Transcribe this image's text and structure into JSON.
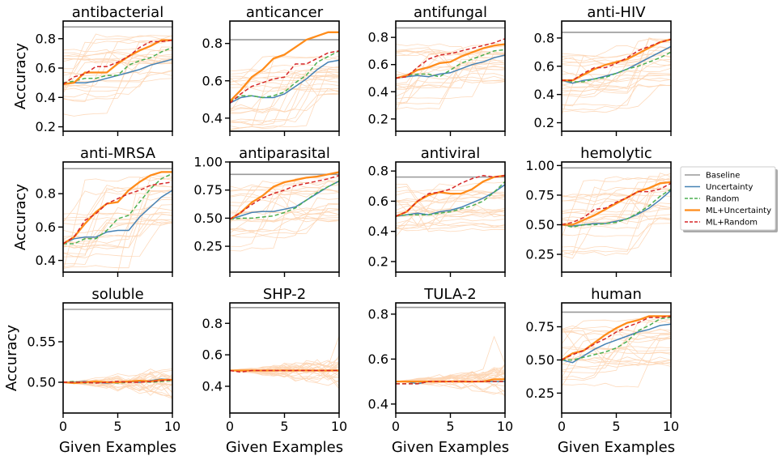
{
  "chart_data": {
    "type": "line",
    "panel_grid": {
      "rows": 3,
      "cols": 4
    },
    "xlabel": "Given Examples",
    "ylabel": "Accuracy",
    "xlim": [
      0,
      10
    ],
    "x": [
      0,
      1,
      2,
      3,
      4,
      5,
      6,
      7,
      8,
      9,
      10
    ],
    "xticks": [
      0,
      5,
      10
    ],
    "legend": {
      "placement": "right",
      "entries": [
        "Baseline",
        "Uncertainty",
        "Random",
        "ML+Uncertainty",
        "ML+Random"
      ]
    },
    "colors": {
      "Baseline": "#999999",
      "Uncertainty": "#4682b4",
      "Random": "#4caf50",
      "ML+Uncertainty": "#ff8c1a",
      "ML+Random": "#d62728",
      "traces": "#fdd5b4"
    },
    "panels": [
      {
        "title": "antibacterial",
        "ylim": [
          0.17,
          0.92
        ],
        "yticks": [
          0.2,
          0.4,
          0.6,
          0.8
        ],
        "ytick_labels": [
          "0.2",
          "0.4",
          "0.6",
          "0.8"
        ],
        "baseline": 0.88,
        "series": [
          {
            "name": "Uncertainty",
            "values": [
              0.49,
              0.5,
              0.5,
              0.51,
              0.53,
              0.55,
              0.57,
              0.59,
              0.62,
              0.64,
              0.66
            ]
          },
          {
            "name": "Random",
            "values": [
              0.5,
              0.51,
              0.53,
              0.53,
              0.55,
              0.55,
              0.62,
              0.65,
              0.67,
              0.71,
              0.74
            ]
          },
          {
            "name": "ML+Uncertainty",
            "values": [
              0.49,
              0.5,
              0.57,
              0.57,
              0.57,
              0.63,
              0.68,
              0.72,
              0.75,
              0.79,
              0.79
            ]
          },
          {
            "name": "ML+Random",
            "values": [
              0.49,
              0.54,
              0.56,
              0.61,
              0.61,
              0.64,
              0.68,
              0.74,
              0.78,
              0.78,
              0.79
            ]
          }
        ]
      },
      {
        "title": "anticancer",
        "ylim": [
          0.33,
          0.92
        ],
        "yticks": [
          0.4,
          0.6,
          0.8
        ],
        "ytick_labels": [
          "0.4",
          "0.6",
          "0.8"
        ],
        "baseline": 0.82,
        "series": [
          {
            "name": "Uncertainty",
            "values": [
              0.48,
              0.51,
              0.52,
              0.51,
              0.51,
              0.53,
              0.57,
              0.61,
              0.66,
              0.7,
              0.71
            ]
          },
          {
            "name": "Random",
            "values": [
              0.49,
              0.52,
              0.52,
              0.51,
              0.52,
              0.54,
              0.59,
              0.63,
              0.7,
              0.73,
              0.76
            ]
          },
          {
            "name": "ML+Uncertainty",
            "values": [
              0.49,
              0.55,
              0.62,
              0.66,
              0.72,
              0.74,
              0.78,
              0.82,
              0.84,
              0.86,
              0.86
            ]
          },
          {
            "name": "ML+Random",
            "values": [
              0.48,
              0.53,
              0.57,
              0.59,
              0.61,
              0.62,
              0.69,
              0.69,
              0.72,
              0.75,
              0.76
            ]
          }
        ]
      },
      {
        "title": "antifungal",
        "ylim": [
          0.11,
          0.92
        ],
        "yticks": [
          0.2,
          0.4,
          0.6,
          0.8
        ],
        "ytick_labels": [
          "0.2",
          "0.4",
          "0.6",
          "0.8"
        ],
        "baseline": 0.87,
        "series": [
          {
            "name": "Uncertainty",
            "values": [
              0.5,
              0.51,
              0.52,
              0.51,
              0.53,
              0.54,
              0.57,
              0.6,
              0.62,
              0.65,
              0.67
            ]
          },
          {
            "name": "Random",
            "values": [
              0.5,
              0.52,
              0.53,
              0.53,
              0.51,
              0.56,
              0.61,
              0.64,
              0.67,
              0.7,
              0.71
            ]
          },
          {
            "name": "ML+Uncertainty",
            "values": [
              0.5,
              0.52,
              0.56,
              0.58,
              0.61,
              0.62,
              0.66,
              0.69,
              0.72,
              0.74,
              0.75
            ]
          },
          {
            "name": "ML+Random",
            "values": [
              0.5,
              0.51,
              0.58,
              0.64,
              0.67,
              0.68,
              0.7,
              0.72,
              0.74,
              0.76,
              0.79
            ]
          }
        ]
      },
      {
        "title": "anti-HIV",
        "ylim": [
          0.14,
          0.92
        ],
        "yticks": [
          0.2,
          0.4,
          0.6,
          0.8
        ],
        "ytick_labels": [
          "0.2",
          "0.4",
          "0.6",
          "0.8"
        ],
        "baseline": 0.84,
        "series": [
          {
            "name": "Uncertainty",
            "values": [
              0.5,
              0.48,
              0.5,
              0.51,
              0.53,
              0.55,
              0.58,
              0.62,
              0.66,
              0.7,
              0.74
            ]
          },
          {
            "name": "Random",
            "values": [
              0.5,
              0.49,
              0.49,
              0.51,
              0.52,
              0.55,
              0.58,
              0.6,
              0.63,
              0.66,
              0.7
            ]
          },
          {
            "name": "ML+Uncertainty",
            "values": [
              0.5,
              0.5,
              0.54,
              0.58,
              0.61,
              0.63,
              0.65,
              0.69,
              0.73,
              0.77,
              0.79
            ]
          },
          {
            "name": "ML+Random",
            "values": [
              0.5,
              0.5,
              0.55,
              0.59,
              0.59,
              0.62,
              0.66,
              0.71,
              0.74,
              0.77,
              0.79
            ]
          }
        ]
      },
      {
        "title": "anti-MRSA",
        "ylim": [
          0.33,
          0.99
        ],
        "yticks": [
          0.4,
          0.6,
          0.8
        ],
        "ytick_labels": [
          "0.4",
          "0.6",
          "0.8"
        ],
        "baseline": 0.95,
        "series": [
          {
            "name": "Uncertainty",
            "values": [
              0.5,
              0.53,
              0.54,
              0.54,
              0.57,
              0.58,
              0.58,
              0.66,
              0.72,
              0.78,
              0.82
            ]
          },
          {
            "name": "Random",
            "values": [
              0.5,
              0.5,
              0.53,
              0.53,
              0.58,
              0.65,
              0.67,
              0.75,
              0.83,
              0.89,
              0.92
            ]
          },
          {
            "name": "ML+Uncertainty",
            "values": [
              0.5,
              0.54,
              0.62,
              0.69,
              0.74,
              0.75,
              0.82,
              0.87,
              0.91,
              0.93,
              0.93
            ]
          },
          {
            "name": "ML+Random",
            "values": [
              0.5,
              0.54,
              0.64,
              0.68,
              0.74,
              0.77,
              0.8,
              0.82,
              0.85,
              0.86,
              0.87
            ]
          }
        ]
      },
      {
        "title": "antiparasital",
        "ylim": [
          0.02,
          1.0
        ],
        "yticks": [
          0.25,
          0.5,
          0.75,
          1.0
        ],
        "ytick_labels": [
          "0.25",
          "0.50",
          "0.75",
          "1.00"
        ],
        "baseline": 0.89,
        "series": [
          {
            "name": "Uncertainty",
            "values": [
              0.49,
              0.52,
              0.55,
              0.56,
              0.56,
              0.58,
              0.6,
              0.66,
              0.72,
              0.78,
              0.83
            ]
          },
          {
            "name": "Random",
            "values": [
              0.49,
              0.5,
              0.5,
              0.51,
              0.52,
              0.55,
              0.59,
              0.66,
              0.73,
              0.78,
              0.83
            ]
          },
          {
            "name": "ML+Uncertainty",
            "values": [
              0.49,
              0.55,
              0.64,
              0.7,
              0.78,
              0.82,
              0.84,
              0.86,
              0.87,
              0.89,
              0.91
            ]
          },
          {
            "name": "ML+Random",
            "values": [
              0.49,
              0.55,
              0.62,
              0.68,
              0.72,
              0.75,
              0.79,
              0.81,
              0.83,
              0.85,
              0.88
            ]
          }
        ]
      },
      {
        "title": "antiviral",
        "ylim": [
          0.13,
          0.86
        ],
        "yticks": [
          0.2,
          0.4,
          0.6,
          0.8
        ],
        "ytick_labels": [
          "0.2",
          "0.4",
          "0.6",
          "0.8"
        ],
        "baseline": 0.76,
        "series": [
          {
            "name": "Uncertainty",
            "values": [
              0.5,
              0.51,
              0.52,
              0.51,
              0.53,
              0.54,
              0.56,
              0.59,
              0.62,
              0.66,
              0.71
            ]
          },
          {
            "name": "Random",
            "values": [
              0.5,
              0.51,
              0.51,
              0.51,
              0.52,
              0.53,
              0.55,
              0.57,
              0.6,
              0.66,
              0.73
            ]
          },
          {
            "name": "ML+Uncertainty",
            "values": [
              0.5,
              0.53,
              0.6,
              0.64,
              0.66,
              0.65,
              0.65,
              0.68,
              0.73,
              0.76,
              0.77
            ]
          },
          {
            "name": "ML+Random",
            "values": [
              0.5,
              0.53,
              0.6,
              0.65,
              0.66,
              0.68,
              0.72,
              0.75,
              0.77,
              0.76,
              0.77
            ]
          }
        ]
      },
      {
        "title": "hemolytic",
        "ylim": [
          0.1,
          1.03
        ],
        "yticks": [
          0.25,
          0.5,
          0.75,
          1.0
        ],
        "ytick_labels": [
          "0.25",
          "0.50",
          "0.75",
          "1.00"
        ],
        "baseline": 0.98,
        "series": [
          {
            "name": "Uncertainty",
            "values": [
              0.5,
              0.49,
              0.5,
              0.51,
              0.51,
              0.53,
              0.55,
              0.59,
              0.64,
              0.71,
              0.79
            ]
          },
          {
            "name": "Random",
            "values": [
              0.5,
              0.48,
              0.5,
              0.5,
              0.51,
              0.52,
              0.55,
              0.6,
              0.66,
              0.74,
              0.8
            ]
          },
          {
            "name": "ML+Uncertainty",
            "values": [
              0.5,
              0.5,
              0.54,
              0.58,
              0.63,
              0.68,
              0.73,
              0.78,
              0.81,
              0.85,
              0.86
            ]
          },
          {
            "name": "ML+Random",
            "values": [
              0.5,
              0.52,
              0.56,
              0.63,
              0.64,
              0.69,
              0.73,
              0.78,
              0.78,
              0.8,
              0.85
            ]
          }
        ]
      },
      {
        "title": "soluble",
        "ylim": [
          0.462,
          0.598
        ],
        "yticks": [
          0.5,
          0.55
        ],
        "ytick_labels": [
          "0.50",
          "0.55"
        ],
        "baseline": 0.59,
        "series": [
          {
            "name": "Uncertainty",
            "values": [
              0.5,
              0.5,
              0.501,
              0.5,
              0.499,
              0.5,
              0.501,
              0.5,
              0.502,
              0.504,
              0.503
            ]
          },
          {
            "name": "Random",
            "values": [
              0.5,
              0.501,
              0.499,
              0.5,
              0.5,
              0.499,
              0.5,
              0.501,
              0.5,
              0.501,
              0.502
            ]
          },
          {
            "name": "ML+Uncertainty",
            "values": [
              0.5,
              0.499,
              0.5,
              0.501,
              0.5,
              0.5,
              0.501,
              0.502,
              0.501,
              0.503,
              0.503
            ]
          },
          {
            "name": "ML+Random",
            "values": [
              0.5,
              0.5,
              0.5,
              0.499,
              0.5,
              0.501,
              0.5,
              0.5,
              0.501,
              0.502,
              0.503
            ]
          }
        ]
      },
      {
        "title": "SHP-2",
        "ylim": [
          0.23,
          0.93
        ],
        "yticks": [
          0.4,
          0.6,
          0.8
        ],
        "ytick_labels": [
          "0.4",
          "0.6",
          "0.8"
        ],
        "baseline": 0.9,
        "series": [
          {
            "name": "Uncertainty",
            "values": [
              0.5,
              0.5,
              0.5,
              0.5,
              0.5,
              0.5,
              0.5,
              0.5,
              0.5,
              0.5,
              0.5
            ]
          },
          {
            "name": "Random",
            "values": [
              0.5,
              0.5,
              0.5,
              0.5,
              0.5,
              0.5,
              0.5,
              0.5,
              0.5,
              0.5,
              0.5
            ]
          },
          {
            "name": "ML+Uncertainty",
            "values": [
              0.5,
              0.5,
              0.5,
              0.5,
              0.5,
              0.5,
              0.5,
              0.5,
              0.5,
              0.5,
              0.5
            ]
          },
          {
            "name": "ML+Random",
            "values": [
              0.5,
              0.49,
              0.5,
              0.5,
              0.5,
              0.5,
              0.5,
              0.5,
              0.5,
              0.5,
              0.5
            ]
          }
        ]
      },
      {
        "title": "TULA-2",
        "ylim": [
          0.36,
          0.85
        ],
        "yticks": [
          0.4,
          0.6,
          0.8
        ],
        "ytick_labels": [
          "0.4",
          "0.6",
          "0.8"
        ],
        "baseline": 0.83,
        "series": [
          {
            "name": "Uncertainty",
            "values": [
              0.5,
              0.5,
              0.49,
              0.5,
              0.5,
              0.5,
              0.5,
              0.5,
              0.5,
              0.5,
              0.5
            ]
          },
          {
            "name": "Random",
            "values": [
              0.49,
              0.49,
              0.49,
              0.5,
              0.5,
              0.5,
              0.5,
              0.5,
              0.5,
              0.5,
              0.5
            ]
          },
          {
            "name": "ML+Uncertainty",
            "values": [
              0.5,
              0.5,
              0.5,
              0.5,
              0.5,
              0.5,
              0.5,
              0.5,
              0.5,
              0.51,
              0.51
            ]
          },
          {
            "name": "ML+Random",
            "values": [
              0.49,
              0.49,
              0.49,
              0.5,
              0.5,
              0.5,
              0.5,
              0.5,
              0.5,
              0.5,
              0.5
            ]
          }
        ]
      },
      {
        "title": "human",
        "ylim": [
          0.1,
          0.93
        ],
        "yticks": [
          0.25,
          0.5,
          0.75
        ],
        "ytick_labels": [
          "0.25",
          "0.50",
          "0.75"
        ],
        "baseline": 0.86,
        "series": [
          {
            "name": "Uncertainty",
            "values": [
              0.5,
              0.48,
              0.53,
              0.58,
              0.62,
              0.65,
              0.68,
              0.71,
              0.73,
              0.76,
              0.77
            ]
          },
          {
            "name": "Random",
            "values": [
              0.5,
              0.5,
              0.52,
              0.54,
              0.56,
              0.59,
              0.64,
              0.72,
              0.76,
              0.81,
              0.82
            ]
          },
          {
            "name": "ML+Uncertainty",
            "values": [
              0.5,
              0.55,
              0.57,
              0.63,
              0.69,
              0.74,
              0.78,
              0.8,
              0.83,
              0.83,
              0.83
            ]
          },
          {
            "name": "ML+Random",
            "values": [
              0.5,
              0.54,
              0.57,
              0.62,
              0.66,
              0.71,
              0.75,
              0.78,
              0.82,
              0.82,
              0.83
            ]
          }
        ]
      }
    ]
  }
}
